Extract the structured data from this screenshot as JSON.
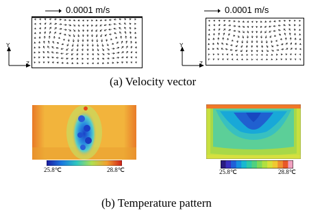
{
  "velocity": {
    "left_scale": "0.0001 m/s",
    "right_scale": "0.0001 m/s",
    "axis_y": "Y",
    "axis_z": "Z",
    "caption": "(a)  Velocity vector"
  },
  "temperature": {
    "left_min": "25.8℃",
    "left_max": "28.8℃",
    "right_min": "25.8℃",
    "right_max": "28.8℃",
    "caption": "(b)  Temperature pattern"
  },
  "colors": {
    "warm_background": "#f2b43c",
    "cold_core": "#1a40c8",
    "hot_top": "#e84818"
  }
}
